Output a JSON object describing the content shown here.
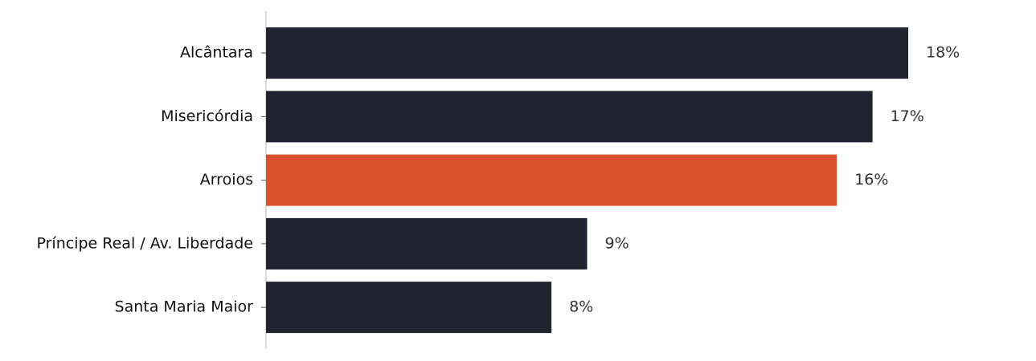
{
  "chart_data": {
    "type": "bar",
    "orientation": "horizontal",
    "categories": [
      "Alcântara",
      "Misericórdia",
      "Arroios",
      "Príncipe Real / Av. Liberdade",
      "Santa Maria Maior"
    ],
    "values": [
      18,
      17,
      16,
      9,
      8
    ],
    "value_labels": [
      "18%",
      "17%",
      "16%",
      "9%",
      "8%"
    ],
    "colors": [
      "#212430",
      "#212430",
      "#d9512c",
      "#212430",
      "#212430"
    ]
  }
}
